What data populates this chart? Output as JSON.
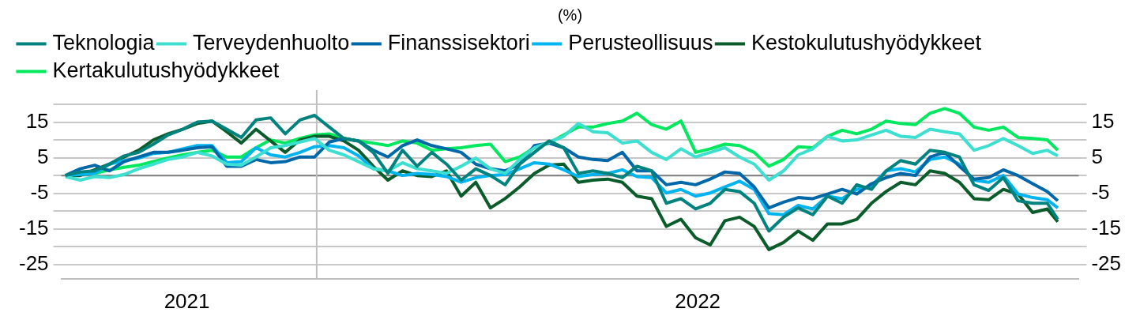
{
  "chart_data": {
    "type": "line",
    "title": "(%)",
    "legend": "top",
    "grid": "y",
    "x": [
      "2021-09-03",
      "2021-09-10",
      "2021-09-17",
      "2021-09-24",
      "2021-10-01",
      "2021-10-08",
      "2021-10-15",
      "2021-10-22",
      "2021-10-29",
      "2021-11-05",
      "2021-11-12",
      "2021-11-19",
      "2021-11-26",
      "2021-12-03",
      "2021-12-10",
      "2021-12-17",
      "2021-12-24",
      "2021-12-31",
      "2022-01-07",
      "2022-01-14",
      "2022-01-21",
      "2022-01-28",
      "2022-02-04",
      "2022-02-11",
      "2022-02-18",
      "2022-02-25",
      "2022-03-04",
      "2022-03-11",
      "2022-03-18",
      "2022-03-25",
      "2022-04-01",
      "2022-04-08",
      "2022-04-15",
      "2022-04-22",
      "2022-04-29",
      "2022-05-06",
      "2022-05-13",
      "2022-05-20",
      "2022-05-27",
      "2022-06-03",
      "2022-06-10",
      "2022-06-17",
      "2022-06-24",
      "2022-07-01",
      "2022-07-08",
      "2022-07-15",
      "2022-07-22",
      "2022-07-29",
      "2022-08-05",
      "2022-08-12",
      "2022-08-19",
      "2022-08-26",
      "2022-09-02",
      "2022-09-09",
      "2022-09-16",
      "2022-09-23",
      "2022-09-30",
      "2022-10-07",
      "2022-10-14",
      "2022-10-21",
      "2022-10-28",
      "2022-11-04",
      "2022-11-11",
      "2022-11-18",
      "2022-11-25",
      "2022-12-02",
      "2022-12-09",
      "2022-12-16",
      "2022-12-21"
    ],
    "xlim": [
      "2021-09-01",
      "2022-12-31"
    ],
    "xticks": [
      {
        "value": "2021-10-31",
        "label": "2021"
      },
      {
        "value": "2022-07-02",
        "label": "2022"
      }
    ],
    "ylim": [
      -29,
      24
    ],
    "yticks": [
      -25,
      {
        "value": -20,
        "label": null
      },
      -15,
      {
        "value": -10,
        "label": null
      },
      -5,
      {
        "value": 0,
        "label": null
      },
      5,
      {
        "value": 10,
        "label": null
      },
      15,
      {
        "value": 20,
        "label": null
      }
    ],
    "y2lim": [
      -29,
      24
    ],
    "y2ticks": [
      -25,
      {
        "value": -20,
        "label": null
      },
      -15,
      {
        "value": -10,
        "label": null
      },
      -5,
      {
        "value": 0,
        "label": null
      },
      5,
      {
        "value": 10,
        "label": null
      },
      15,
      {
        "value": 20,
        "label": null
      }
    ],
    "ref_lines": [
      {
        "axis": "y",
        "value": 0,
        "color": "#808080"
      },
      {
        "axis": "x",
        "value": "2022-01-01",
        "color": "#bfbfbf"
      }
    ],
    "series": [
      {
        "name": "Teknologia",
        "color": "#00827f",
        "values": [
          0,
          1,
          1.3,
          3.2,
          5.5,
          6.5,
          8.8,
          11.4,
          13,
          15,
          15.3,
          13,
          10.7,
          15.6,
          16.2,
          11.7,
          15.6,
          16.9,
          13.6,
          10.4,
          9.7,
          6.5,
          0.6,
          7.1,
          2.6,
          6.5,
          3.2,
          -1.3,
          1.9,
          0,
          -2.6,
          3.2,
          6.5,
          9.7,
          7.8,
          0.6,
          1.3,
          0.6,
          -0.6,
          2.6,
          1.3,
          -7.8,
          -6.5,
          -9.4,
          -7.8,
          -3.9,
          -4.5,
          -7.8,
          -15.6,
          -11.7,
          -9.1,
          -11,
          -5.8,
          -7.8,
          -2.6,
          -3.9,
          1.3,
          4.2,
          3.2,
          7.1,
          6.5,
          5.2,
          -2.6,
          -4.2,
          -0.6,
          -7.1,
          -7.8,
          -7.8,
          -12.3
        ]
      },
      {
        "name": "Terveydenhuolto",
        "color": "#3cdfd0",
        "values": [
          -0.3,
          -1.3,
          -0.3,
          -0.6,
          0.3,
          1.9,
          3.2,
          4.5,
          5.2,
          6.5,
          5.5,
          3.2,
          2.9,
          5.2,
          7.8,
          8.4,
          9.4,
          10.4,
          7.1,
          5.8,
          3.9,
          1.9,
          1.3,
          3.6,
          1.9,
          1.3,
          0.6,
          2.6,
          4.9,
          1.9,
          0.6,
          4.5,
          7.8,
          9.4,
          11,
          14.6,
          12.3,
          12,
          9.1,
          9.7,
          6.5,
          4.5,
          7.5,
          5.2,
          6.5,
          7.8,
          5.2,
          3.2,
          -1.3,
          1.3,
          5.8,
          7.5,
          11,
          9.7,
          10,
          11.4,
          12.7,
          11,
          10.7,
          13,
          12.3,
          11.7,
          7.1,
          8.4,
          10.4,
          8.4,
          6.2,
          7.1,
          5.5
        ]
      },
      {
        "name": "Finanssisektori",
        "color": "#0068a8",
        "values": [
          0,
          1.9,
          2.9,
          1.3,
          3.9,
          5.2,
          6.5,
          6.5,
          7.1,
          7.8,
          8.1,
          2.6,
          2.6,
          4.5,
          3.6,
          3.9,
          5.2,
          5.2,
          9.4,
          10.4,
          9.7,
          7.1,
          5.2,
          8.4,
          10,
          8.4,
          7.5,
          6.5,
          3.2,
          1.9,
          1.3,
          3.2,
          8.4,
          9.1,
          7.8,
          5.2,
          4.5,
          4.2,
          6.5,
          1.3,
          1.3,
          -2.6,
          -1.9,
          -2.6,
          -1,
          1,
          0.6,
          -3.2,
          -9.1,
          -7.5,
          -6.2,
          -6.5,
          -5.2,
          -3.9,
          -5.2,
          -2.3,
          -0.6,
          0.6,
          0,
          5.2,
          6.5,
          2.6,
          -1,
          -0.6,
          1.6,
          0,
          -2.3,
          -4.5,
          -7.1
        ]
      },
      {
        "name": "Perusteollisuus",
        "color": "#00b4f0",
        "values": [
          0,
          0.3,
          0.6,
          3.2,
          4.2,
          4.9,
          6.2,
          6.5,
          7.5,
          8.4,
          8.4,
          3.6,
          3.9,
          7.8,
          5.8,
          5.2,
          6.5,
          8.1,
          8.4,
          7.8,
          5.5,
          1.9,
          1.3,
          0,
          0.6,
          0.3,
          -0.3,
          -1.9,
          -0.6,
          0,
          0.3,
          1.9,
          3.6,
          3.2,
          1.6,
          -0.3,
          0.3,
          0.6,
          1.6,
          -0.3,
          -0.6,
          -4.9,
          -3.9,
          -5.8,
          -4.9,
          -3.2,
          -1.6,
          -3.9,
          -10.7,
          -11,
          -8.4,
          -9.4,
          -5.8,
          -6.5,
          -3.9,
          -2.9,
          1.3,
          1.9,
          1,
          4.5,
          5.2,
          3.2,
          -1.3,
          -1.9,
          0,
          -5.2,
          -6.2,
          -6.8,
          -9.1
        ]
      },
      {
        "name": "Kestokulutushyödykkeet",
        "color": "#0b5c2b",
        "values": [
          0,
          0,
          1.6,
          3.2,
          5.2,
          7.1,
          10,
          11.7,
          13,
          14.6,
          15.3,
          12.3,
          9.1,
          13,
          9.7,
          6.5,
          10,
          11,
          11,
          9.7,
          7.1,
          2.6,
          -1.3,
          1.3,
          0,
          -0.3,
          1.3,
          -5.8,
          -1.9,
          -9.1,
          -6.5,
          -3.2,
          0.6,
          2.9,
          3.2,
          -1.9,
          -1.3,
          -1,
          -1.9,
          -5.8,
          -6.5,
          -14.3,
          -12.3,
          -17.5,
          -19.5,
          -12.7,
          -11.7,
          -14.3,
          -20.8,
          -18.8,
          -15.6,
          -18.2,
          -13.6,
          -13.6,
          -12.3,
          -7.8,
          -4.5,
          -1.9,
          -2.6,
          1.3,
          0.6,
          -1.9,
          -6.5,
          -6.8,
          -3.9,
          -5.2,
          -10.4,
          -9.4,
          -13
        ]
      },
      {
        "name": "Kertakulutushyödykkeet",
        "color": "#00e85e",
        "values": [
          0,
          0.3,
          0.6,
          1.6,
          2.3,
          2.9,
          3.9,
          4.9,
          5.8,
          6.5,
          7.1,
          5.2,
          5.2,
          7.8,
          10,
          9.1,
          10.4,
          11.4,
          11.7,
          10.4,
          9.7,
          9.1,
          8.4,
          9.7,
          9.1,
          7.1,
          7.5,
          7.8,
          8.4,
          8.8,
          3.9,
          5.2,
          7.8,
          9.1,
          11.4,
          13.6,
          13.6,
          14.6,
          15.3,
          17.5,
          14.3,
          13,
          15.3,
          6.5,
          7.5,
          8.8,
          8.4,
          6.5,
          2.6,
          4.5,
          8.1,
          7.8,
          11,
          12.7,
          11.7,
          13,
          15.3,
          14.6,
          14.3,
          17.5,
          18.8,
          17.5,
          13.6,
          12.7,
          13.6,
          10.7,
          10.4,
          10,
          7.1
        ]
      }
    ]
  }
}
